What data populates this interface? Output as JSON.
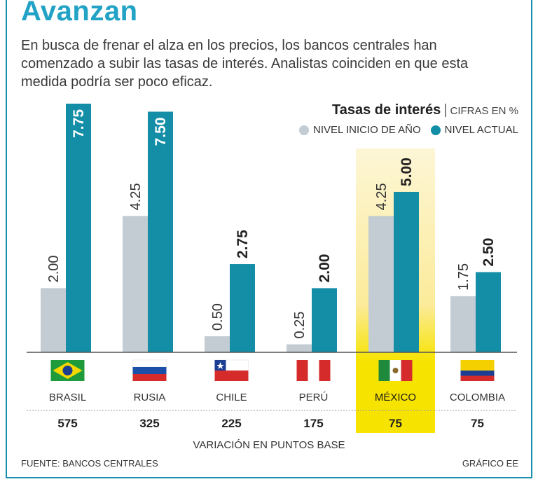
{
  "header": {
    "title": "Avanzan",
    "subtitle": "En busca de frenar el alza en los precios, los bancos centrales han comenzado a subir las tasas de interés. Analistas coinciden en que esta medida podría ser poco eficaz."
  },
  "legend": {
    "title": "Tasas de interés",
    "separator": "|",
    "unit": "CIFRAS EN %",
    "series": [
      {
        "name": "NIVEL INICIO DE AÑO",
        "color": "#c2ccd2"
      },
      {
        "name": "NIVEL ACTUAL",
        "color": "#138ea6"
      }
    ]
  },
  "chart_data": {
    "type": "bar",
    "title": "Tasas de interés",
    "unit": "CIFRAS EN %",
    "categories": [
      "BRASIL",
      "RUSIA",
      "CHILE",
      "PERÚ",
      "MÉXICO",
      "COLOMBIA"
    ],
    "series": [
      {
        "name": "NIVEL INICIO DE AÑO",
        "values": [
          2.0,
          4.25,
          0.5,
          0.25,
          4.25,
          1.75
        ],
        "labels": [
          "2.00",
          "4.25",
          "0.50",
          "0.25",
          "4.25",
          "1.75"
        ]
      },
      {
        "name": "NIVEL ACTUAL",
        "values": [
          7.75,
          7.5,
          2.75,
          2.0,
          5.0,
          2.5
        ],
        "labels": [
          "7.75",
          "7.50",
          "2.75",
          "2.00",
          "5.00",
          "2.50"
        ]
      }
    ],
    "variation_label": "VARIACIÓN EN PUNTOS BASE",
    "variation": [
      "575",
      "325",
      "225",
      "175",
      "75",
      "75"
    ],
    "highlight": "MÉXICO",
    "highlight_color": "#f7e300",
    "ylim": [
      0,
      7.75
    ]
  },
  "footer": {
    "source": "FUENTE: BANCOS CENTRALES",
    "credit": "GRÁFICO EE"
  }
}
